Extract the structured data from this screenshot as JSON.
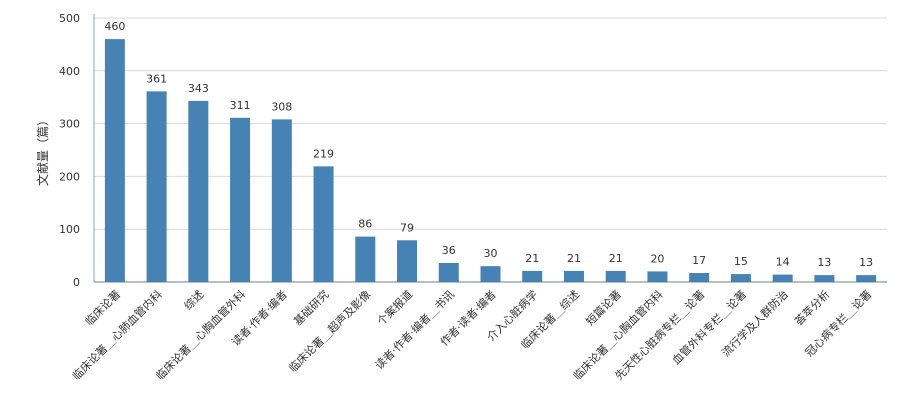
{
  "chart_data": {
    "type": "bar",
    "title": "",
    "xlabel": "",
    "ylabel": "文献量（篇）",
    "ylim": [
      0,
      500
    ],
    "yticks": [
      0,
      100,
      200,
      300,
      400,
      500
    ],
    "grid": true,
    "bar_color": "#4682b4",
    "categories": [
      "临床论著",
      "临床论著＿心肺血管内科",
      "综述",
      "临床论著＿心胸血管外科",
      "读者·作者·编者",
      "基础研究",
      "临床论著＿超声及影像",
      "个案报道",
      "读者·作者·编者＿书讯",
      "作者·读者·编者",
      "介入心脏病学",
      "临床论著＿综述",
      "短篇论著",
      "临床论著＿心胸血管内科",
      "先天性心脏病专栏＿论著",
      "血管外科专栏＿论著",
      "流行学及人群防治",
      "荟萃分析",
      "冠心病专栏＿论著"
    ],
    "values": [
      460,
      361,
      343,
      311,
      308,
      219,
      86,
      79,
      36,
      30,
      21,
      21,
      21,
      20,
      17,
      15,
      14,
      13,
      13
    ]
  }
}
